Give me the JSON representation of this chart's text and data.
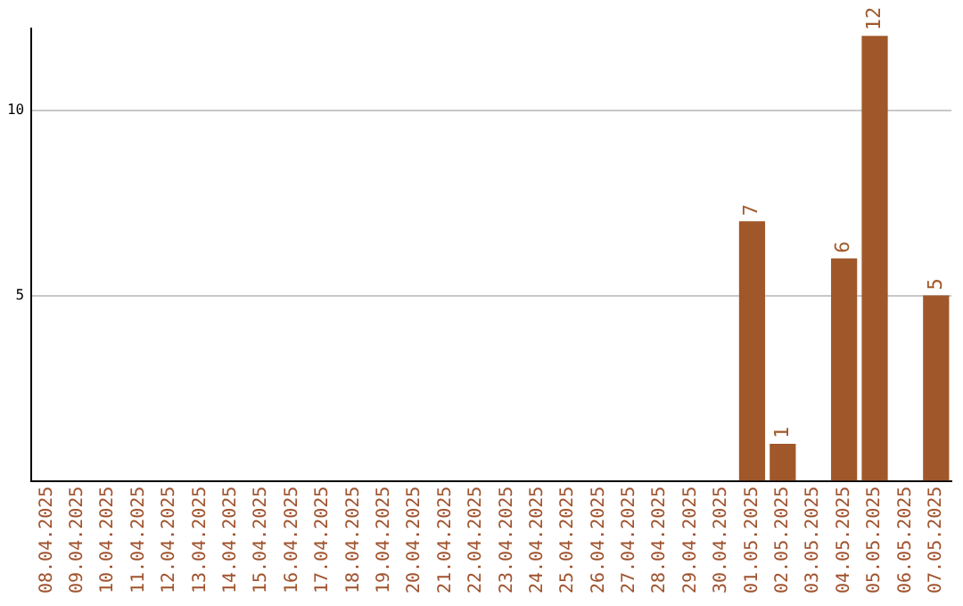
{
  "chart_data": {
    "type": "bar",
    "categories": [
      "08.04.2025",
      "09.04.2025",
      "10.04.2025",
      "11.04.2025",
      "12.04.2025",
      "13.04.2025",
      "14.04.2025",
      "15.04.2025",
      "16.04.2025",
      "17.04.2025",
      "18.04.2025",
      "19.04.2025",
      "20.04.2025",
      "21.04.2025",
      "22.04.2025",
      "23.04.2025",
      "24.04.2025",
      "25.04.2025",
      "26.04.2025",
      "27.04.2025",
      "28.04.2025",
      "29.04.2025",
      "30.04.2025",
      "01.05.2025",
      "02.05.2025",
      "03.05.2025",
      "04.05.2025",
      "05.05.2025",
      "06.05.2025",
      "07.05.2025"
    ],
    "values": [
      0,
      0,
      0,
      0,
      0,
      0,
      0,
      0,
      0,
      0,
      0,
      0,
      0,
      0,
      0,
      0,
      0,
      0,
      0,
      0,
      0,
      0,
      0,
      7,
      1,
      0,
      6,
      12,
      0,
      5
    ],
    "value_labels": [
      null,
      null,
      null,
      null,
      null,
      null,
      null,
      null,
      null,
      null,
      null,
      null,
      null,
      null,
      null,
      null,
      null,
      null,
      null,
      null,
      null,
      null,
      null,
      "7",
      "1",
      null,
      "6",
      "12",
      null,
      "5"
    ],
    "color": "#a0582a",
    "ylim": [
      0,
      12.2
    ],
    "yticks": [
      5,
      10
    ],
    "grid": "y",
    "legend": false
  }
}
